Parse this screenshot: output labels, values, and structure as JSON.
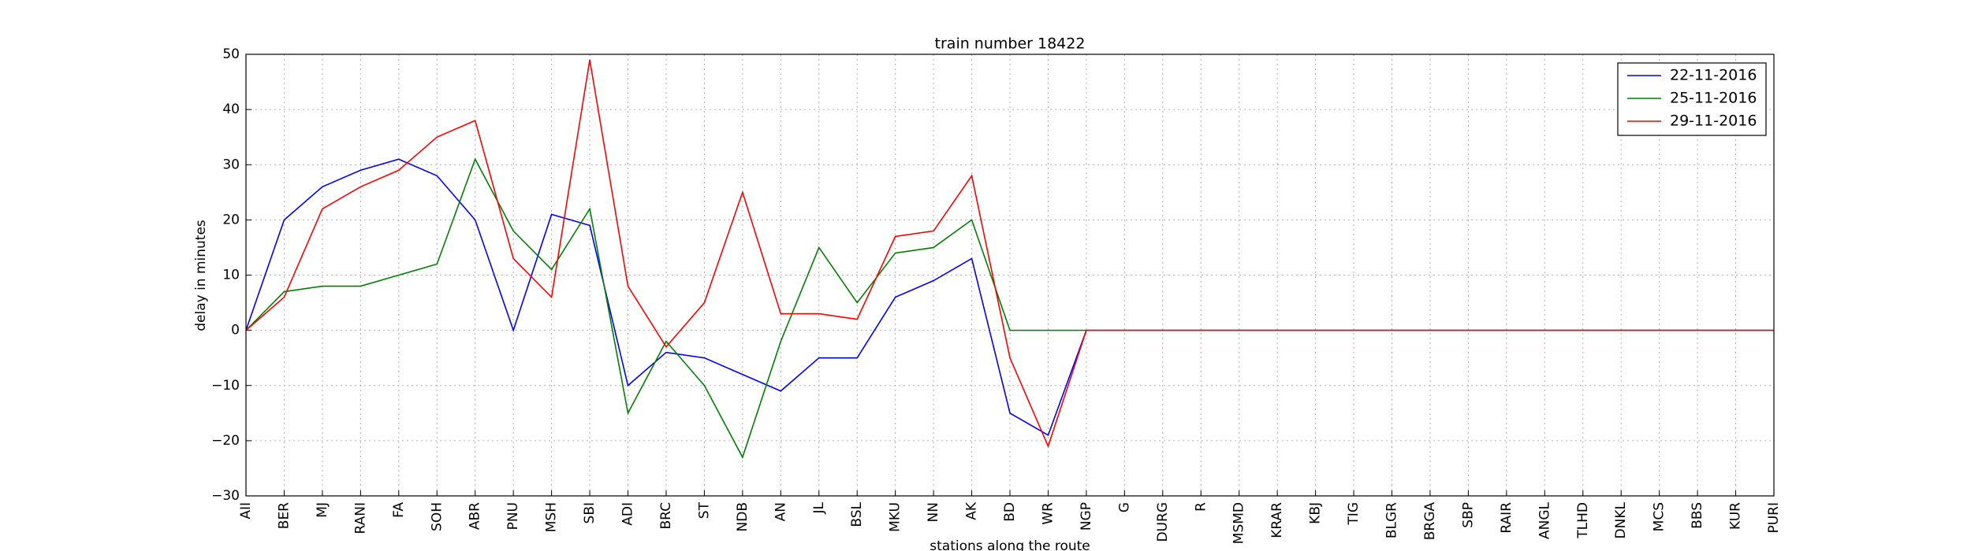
{
  "chart_data": {
    "type": "line",
    "title": "train number 18422",
    "x_label": "stations along the route",
    "y_label": "delay in minutes",
    "categories": [
      "AII",
      "BER",
      "MJ",
      "RANI",
      "FA",
      "SOH",
      "ABR",
      "PNU",
      "MSH",
      "SBI",
      "ADI",
      "BRC",
      "ST",
      "NDB",
      "AN",
      "JL",
      "BSL",
      "MKU",
      "NN",
      "AK",
      "BD",
      "WR",
      "NGP",
      "G",
      "DURG",
      "R",
      "MSMD",
      "KRAR",
      "KBJ",
      "TIG",
      "BLGR",
      "BRGA",
      "SBP",
      "RAIR",
      "ANGL",
      "TLHD",
      "DNKL",
      "MCS",
      "BBS",
      "KUR",
      "PURI"
    ],
    "series": [
      {
        "name": "22-11-2016",
        "color": "#0000ff",
        "values": [
          0,
          20,
          26,
          29,
          31,
          28,
          20,
          0,
          21,
          19,
          -10,
          -4,
          -5,
          -8,
          -11,
          -5,
          -5,
          6,
          9,
          13,
          -15,
          -19,
          0,
          0,
          0,
          0,
          0,
          0,
          0,
          0,
          0,
          0,
          0,
          0,
          0,
          0,
          0,
          0,
          0,
          0,
          0
        ]
      },
      {
        "name": "25-11-2016",
        "color": "#008000",
        "values": [
          0,
          7,
          8,
          8,
          10,
          12,
          31,
          18,
          11,
          22,
          -15,
          -2,
          -10,
          -23,
          -2,
          15,
          5,
          14,
          15,
          20,
          0,
          0,
          0,
          0,
          0,
          0,
          0,
          0,
          0,
          0,
          0,
          0,
          0,
          0,
          0,
          0,
          0,
          0,
          0,
          0,
          0
        ]
      },
      {
        "name": "29-11-2016",
        "color": "#ff0000",
        "values": [
          0,
          6,
          22,
          26,
          29,
          35,
          38,
          13,
          6,
          49,
          8,
          -3,
          5,
          25,
          3,
          3,
          2,
          17,
          18,
          28,
          -5,
          -21,
          0,
          0,
          0,
          0,
          0,
          0,
          0,
          0,
          0,
          0,
          0,
          0,
          0,
          0,
          0,
          0,
          0,
          0,
          0
        ]
      }
    ],
    "ylim": [
      -30,
      50
    ],
    "yticks": [
      {
        "value": -30,
        "label": "−30"
      },
      {
        "value": -20,
        "label": "−20"
      },
      {
        "value": -10,
        "label": "−10"
      },
      0,
      10,
      20,
      30,
      40,
      50
    ],
    "grid": true,
    "legend": "upper right"
  }
}
